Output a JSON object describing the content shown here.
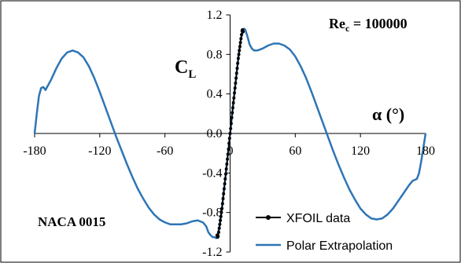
{
  "chart_data": {
    "type": "line",
    "title": "",
    "xlabel": "α (°)",
    "ylabel": "C",
    "ylabel_subscript": "L",
    "xlim": [
      -180,
      180
    ],
    "ylim": [
      -1.2,
      1.2
    ],
    "x_ticks": [
      -180,
      -120,
      -60,
      0,
      60,
      120,
      180
    ],
    "x_tick_labels": [
      "-180",
      "-120",
      "-60",
      "0",
      "60",
      "120",
      "180"
    ],
    "y_ticks": [
      -1.2,
      -0.8,
      -0.4,
      0.0,
      0.4,
      0.8,
      1.2
    ],
    "y_tick_labels": [
      "-1.2",
      "-0.8",
      "-0.4",
      "0.0",
      "0.4",
      "0.8",
      "1.2"
    ],
    "grid": false,
    "legend": "bottom-right",
    "annotations": {
      "reynolds_main": "Re",
      "reynolds_sub": "c",
      "reynolds_value": " = 100000",
      "airfoil": "NACA 0015"
    },
    "series": [
      {
        "name": "XFOIL data",
        "color": "#000000",
        "marker": "circle",
        "x": [
          -12,
          -11.5,
          -11,
          -10.5,
          -10,
          -9.5,
          -9,
          -8.5,
          -8,
          -7.5,
          -7,
          -6.5,
          -6,
          -5.5,
          -5,
          -4.5,
          -4,
          -3.5,
          -3,
          -2.5,
          -2,
          -1.5,
          -1,
          -0.5,
          0,
          0.5,
          1,
          1.5,
          2,
          2.5,
          3,
          3.5,
          4,
          4.5,
          5,
          5.5,
          6,
          6.5,
          7,
          7.5,
          8,
          8.5,
          9,
          9.5,
          10,
          10.5,
          11,
          11.5,
          12
        ],
        "y": [
          -1.03,
          -1.05,
          -1.04,
          -1.0,
          -0.96,
          -0.92,
          -0.88,
          -0.84,
          -0.8,
          -0.76,
          -0.71,
          -0.66,
          -0.61,
          -0.56,
          -0.51,
          -0.46,
          -0.41,
          -0.36,
          -0.31,
          -0.26,
          -0.21,
          -0.16,
          -0.1,
          -0.05,
          0.0,
          0.05,
          0.1,
          0.16,
          0.21,
          0.26,
          0.31,
          0.36,
          0.41,
          0.46,
          0.51,
          0.56,
          0.61,
          0.66,
          0.71,
          0.76,
          0.8,
          0.84,
          0.88,
          0.92,
          0.96,
          1.0,
          1.04,
          1.05,
          1.03
        ]
      },
      {
        "name": "Polar Extrapolation",
        "color": "#2E75B6",
        "x": [
          -180,
          -178,
          -176,
          -174,
          -172,
          -170,
          -165,
          -160,
          -155,
          -150,
          -145,
          -140,
          -135,
          -130,
          -125,
          -120,
          -115,
          -110,
          -105,
          -100,
          -95,
          -90,
          -85,
          -80,
          -75,
          -70,
          -65,
          -60,
          -55,
          -50,
          -45,
          -40,
          -35,
          -30,
          -25,
          -22,
          -20,
          -18,
          -16,
          -14,
          -13,
          -12,
          -10,
          -8,
          -6,
          -4,
          -2,
          0,
          2,
          4,
          6,
          8,
          10,
          12,
          13,
          14,
          16,
          18,
          20,
          22,
          25,
          30,
          35,
          40,
          45,
          50,
          55,
          60,
          65,
          70,
          75,
          80,
          85,
          90,
          95,
          100,
          105,
          110,
          115,
          120,
          125,
          130,
          135,
          140,
          145,
          150,
          155,
          160,
          165,
          168,
          170,
          172,
          174,
          176,
          178,
          180
        ],
        "y": [
          0.0,
          0.2,
          0.38,
          0.46,
          0.47,
          0.44,
          0.54,
          0.66,
          0.76,
          0.82,
          0.84,
          0.82,
          0.77,
          0.68,
          0.56,
          0.42,
          0.27,
          0.12,
          -0.03,
          -0.17,
          -0.31,
          -0.44,
          -0.56,
          -0.66,
          -0.75,
          -0.82,
          -0.87,
          -0.9,
          -0.92,
          -0.92,
          -0.92,
          -0.91,
          -0.89,
          -0.88,
          -0.9,
          -0.94,
          -1.0,
          -1.03,
          -1.05,
          -1.05,
          -1.06,
          -1.04,
          -0.96,
          -0.8,
          -0.61,
          -0.41,
          -0.21,
          0.0,
          0.21,
          0.41,
          0.61,
          0.8,
          0.96,
          1.04,
          1.06,
          1.05,
          0.98,
          0.9,
          0.86,
          0.84,
          0.84,
          0.86,
          0.89,
          0.91,
          0.91,
          0.89,
          0.85,
          0.78,
          0.68,
          0.56,
          0.42,
          0.27,
          0.12,
          -0.03,
          -0.18,
          -0.32,
          -0.45,
          -0.57,
          -0.67,
          -0.76,
          -0.82,
          -0.86,
          -0.87,
          -0.86,
          -0.82,
          -0.76,
          -0.68,
          -0.6,
          -0.52,
          -0.48,
          -0.47,
          -0.46,
          -0.4,
          -0.28,
          -0.14,
          0.0
        ]
      }
    ]
  }
}
